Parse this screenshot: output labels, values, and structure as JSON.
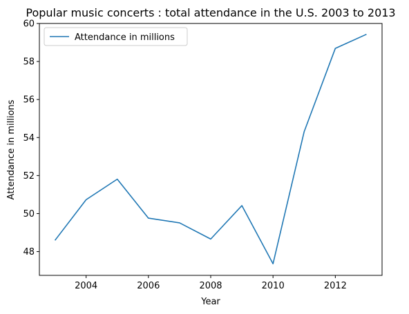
{
  "chart_data": {
    "type": "line",
    "title": "Popular music concerts : total attendance in the U.S. 2003 to 2013",
    "xlabel": "Year",
    "ylabel": "Attendance in millions",
    "x": [
      2003,
      2004,
      2005,
      2006,
      2007,
      2008,
      2009,
      2010,
      2011,
      2012,
      2013
    ],
    "series": [
      {
        "name": "Attendance in millions",
        "color": "#1f77b4",
        "values": [
          48.59,
          50.73,
          51.81,
          49.76,
          49.51,
          48.66,
          50.42,
          47.36,
          54.31,
          58.69,
          59.43
        ]
      }
    ],
    "xlim": [
      2002.5,
      2013.5
    ],
    "ylim": [
      46.75,
      60.0
    ],
    "xticks": [
      2004,
      2006,
      2008,
      2010,
      2012
    ],
    "yticks": [
      48,
      50,
      52,
      54,
      56,
      58,
      60
    ],
    "grid": false,
    "legend_position": "upper left"
  }
}
